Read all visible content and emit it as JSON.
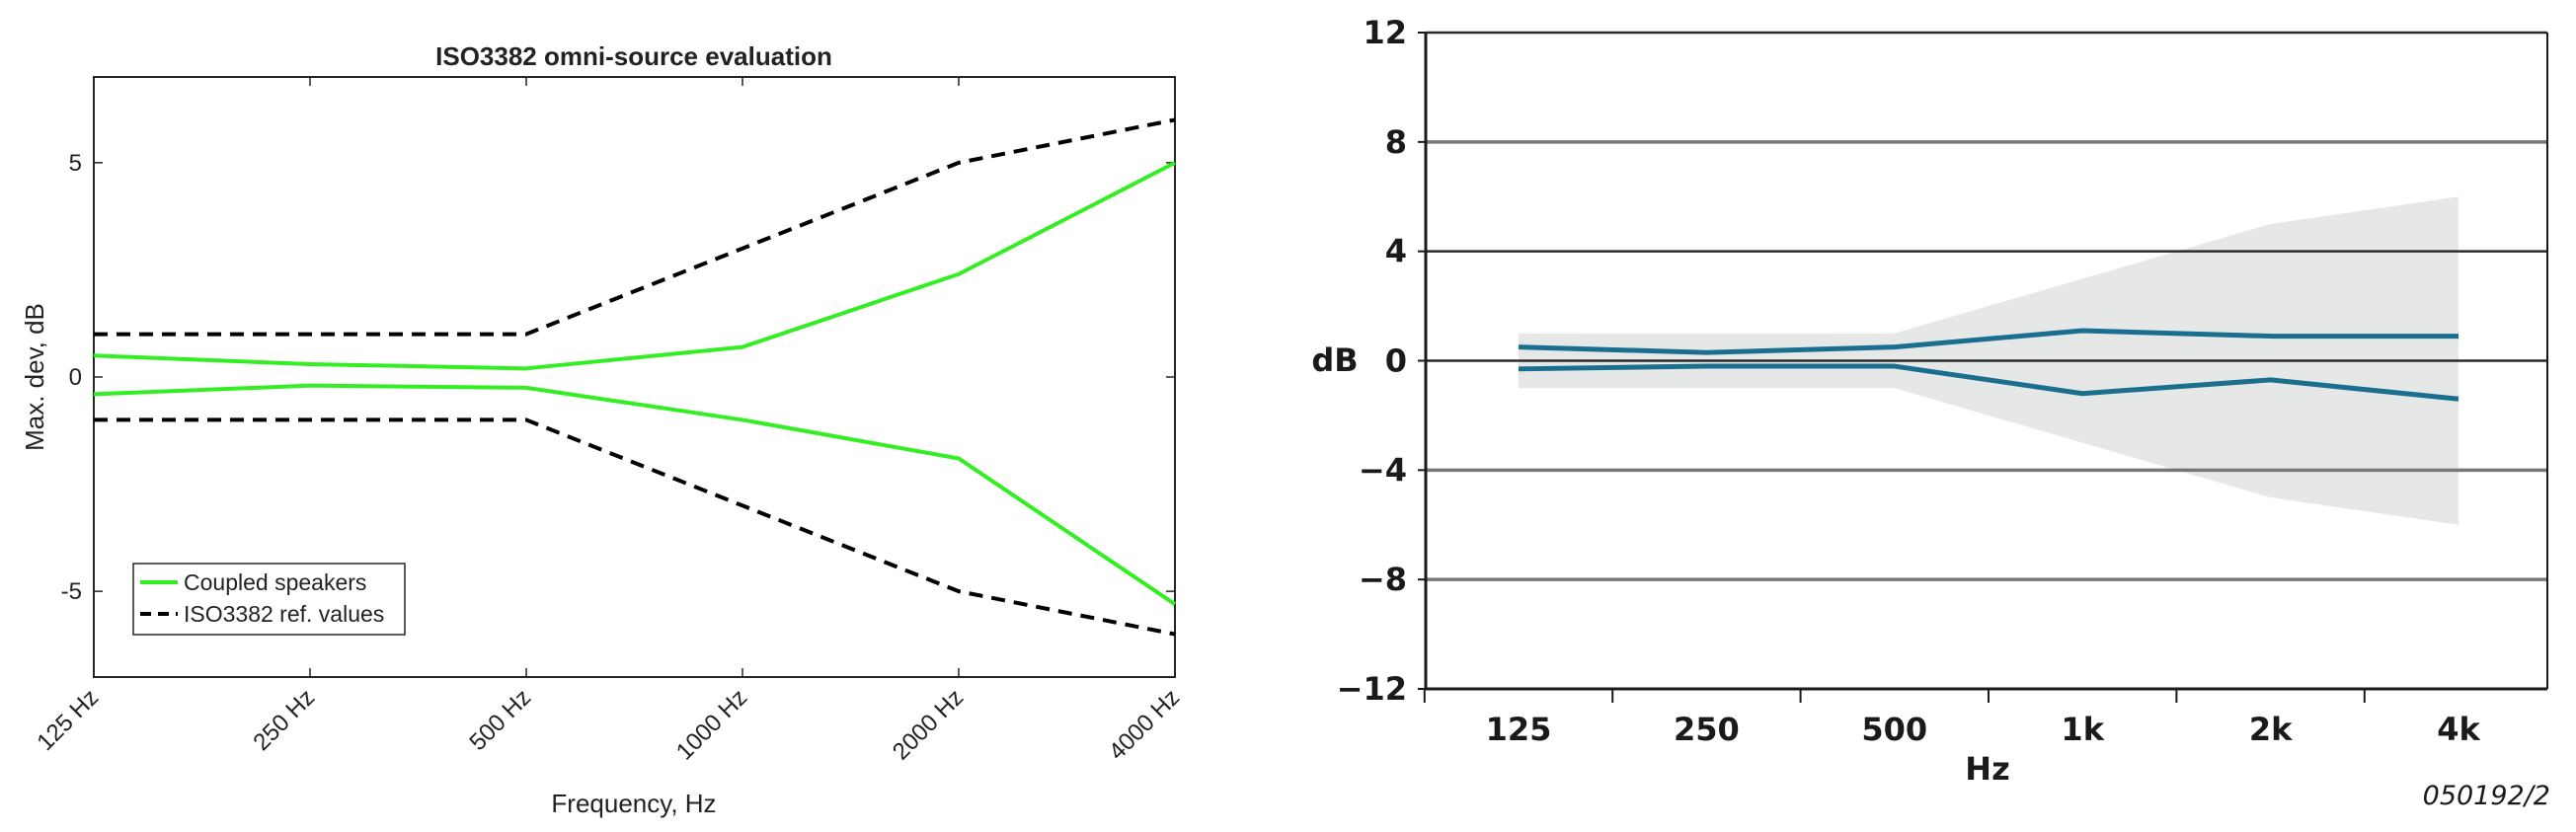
{
  "chart_data": [
    {
      "type": "line",
      "title": "ISO3382 omni-source evaluation",
      "xlabel": "Frequency, Hz",
      "ylabel": "Max. dev, dB",
      "categories": [
        "125 Hz",
        "250 Hz",
        "500 Hz",
        "1000 Hz",
        "2000 Hz",
        "4000 Hz"
      ],
      "ylim": [
        -7,
        7
      ],
      "yticks": [
        "5",
        "0",
        "-5"
      ],
      "ytick_values": [
        5,
        0,
        -5
      ],
      "grid": false,
      "legend": "bottom-left",
      "series": [
        {
          "name": "Coupled speakers",
          "color": "#33ee22",
          "style": "solid",
          "values": [
            0.5,
            0.3,
            0.2,
            0.7,
            2.4,
            5.0
          ]
        },
        {
          "name": "",
          "color": "#33ee22",
          "style": "solid",
          "values": [
            -0.4,
            -0.2,
            -0.25,
            -1.0,
            -1.9,
            -5.3
          ]
        },
        {
          "name": "ISO3382 ref. values",
          "color": "#000000",
          "style": "dashed",
          "values": [
            1,
            1,
            1,
            3,
            5,
            6
          ]
        },
        {
          "name": "",
          "color": "#000000",
          "style": "dashed",
          "values": [
            -1,
            -1,
            -1,
            -3,
            -5,
            -6
          ]
        }
      ]
    },
    {
      "type": "area",
      "title": "",
      "xlabel": "Hz",
      "ylabel": "dB",
      "categories": [
        "125",
        "250",
        "500",
        "1k",
        "2k",
        "4k"
      ],
      "ylim": [
        -12,
        12
      ],
      "yticks": [
        "12",
        "8",
        "4",
        "0",
        "−4",
        "−8",
        "−12"
      ],
      "ytick_values": [
        12,
        8,
        4,
        0,
        -4,
        -8,
        -12
      ],
      "grid": true,
      "annotation": "050192/2",
      "band": {
        "color": "#e6e8e8",
        "upper": [
          1,
          1,
          1,
          3,
          5,
          6
        ],
        "lower": [
          -1,
          -1,
          -1,
          -3,
          -5,
          -6
        ]
      },
      "series": [
        {
          "color": "#1a6f8f",
          "values": [
            0.5,
            0.3,
            0.5,
            1.1,
            0.9,
            0.9
          ]
        },
        {
          "color": "#1a6f8f",
          "values": [
            -0.3,
            -0.2,
            -0.2,
            -1.2,
            -0.7,
            -1.4
          ]
        }
      ]
    }
  ]
}
